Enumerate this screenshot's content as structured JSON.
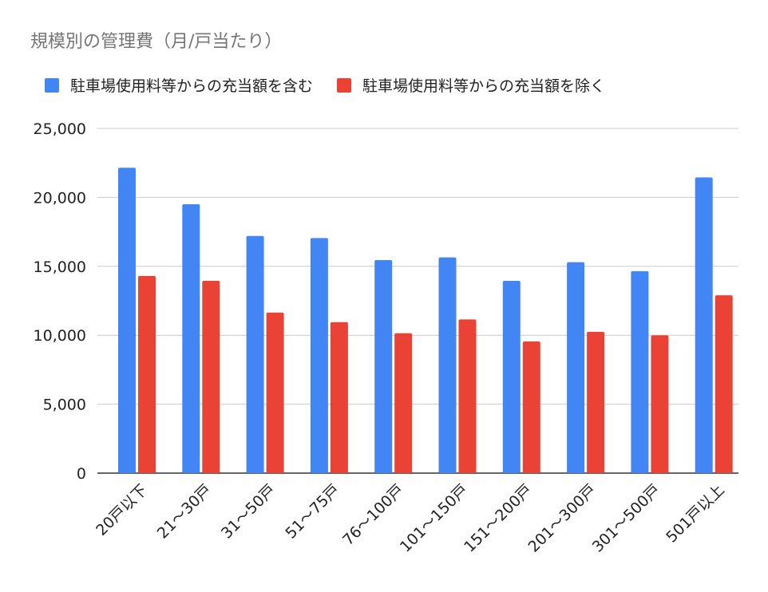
{
  "chart_data": {
    "type": "bar",
    "title": "規模別の管理費（月/戸当たり）",
    "xlabel": "",
    "ylabel": "",
    "categories": [
      "20戸以下",
      "21～30戸",
      "31～50戸",
      "51～75戸",
      "76～100戸",
      "101～150戸",
      "151～200戸",
      "201～300戸",
      "301～500戸",
      "501戸以上"
    ],
    "series": [
      {
        "name": "駐車場使用料等からの充当額を含む",
        "color": "#4285f4",
        "values": [
          22150,
          19500,
          17200,
          17050,
          15450,
          15650,
          13950,
          15300,
          14650,
          21450
        ]
      },
      {
        "name": "駐車場使用料等からの充当額を除く",
        "color": "#ea4335",
        "values": [
          14300,
          13950,
          11650,
          10950,
          10150,
          11150,
          9550,
          10250,
          10000,
          12900
        ]
      }
    ],
    "ylim": [
      0,
      25000
    ],
    "yticks": [
      "0",
      "5,000",
      "10,000",
      "15,000",
      "20,000",
      "25,000"
    ],
    "grid": true,
    "legend_position": "top-left"
  }
}
